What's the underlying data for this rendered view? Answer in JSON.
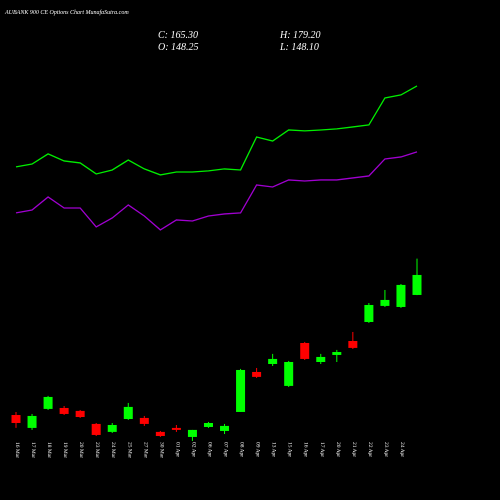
{
  "chart_data": {
    "type": "candlestick",
    "title": "AUBANK 900  CE Options Chart MunafaSutra.com",
    "header": {
      "close": "C: 165.30",
      "high": "H: 179.20",
      "open": "O: 148.25",
      "low": "L: 148.10"
    },
    "categories": [
      "16 Mar",
      "17 Mar",
      "18 Mar",
      "19 Mar",
      "20 Mar",
      "23 Mar",
      "24 Mar",
      "25 Mar",
      "27 Mar",
      "30 Mar",
      "01 Apr",
      "02 Apr",
      "06 Apr",
      "07 Apr",
      "08 Apr",
      "09 Apr",
      "13 Apr",
      "15 Apr",
      "16 Apr",
      "17 Apr",
      "20 Apr",
      "21 Apr",
      "22 Apr",
      "23 Apr",
      "24 Apr",
      null
    ],
    "open": [
      45.9,
      34.9,
      51.1,
      51.9,
      49.4,
      38.3,
      31.5,
      42.5,
      43.4,
      31.5,
      34.9,
      27.2,
      35.7,
      32.3,
      48.5,
      82.6,
      89.4,
      70.7,
      107.3,
      91.1,
      97.1,
      109.0,
      125.2,
      138.9,
      138.0,
      148.25
    ],
    "high": [
      48.5,
      46.8,
      62.2,
      53.6,
      50.2,
      39.1,
      39.1,
      56.2,
      45.1,
      32.3,
      37.4,
      33.2,
      40.0,
      38.3,
      85.2,
      86.0,
      98.0,
      92.0,
      108.2,
      98.0,
      101.4,
      116.7,
      141.4,
      152.5,
      157.6,
      179.2
    ],
    "low": [
      34.9,
      33.2,
      50.2,
      45.9,
      43.4,
      28.0,
      30.6,
      41.7,
      36.6,
      27.2,
      31.5,
      23.8,
      34.9,
      29.7,
      48.5,
      77.5,
      87.7,
      69.8,
      92.8,
      89.4,
      91.1,
      102.2,
      124.4,
      138.0,
      137.2,
      148.1
    ],
    "close": [
      39.1,
      45.1,
      61.3,
      46.8,
      44.2,
      28.9,
      37.4,
      52.8,
      38.3,
      28.0,
      33.2,
      33.2,
      39.1,
      36.6,
      84.3,
      78.4,
      93.7,
      91.1,
      93.7,
      95.4,
      99.6,
      103.1,
      139.7,
      144.0,
      156.8,
      165.3
    ],
    "up_color": "#00ff00",
    "down_color": "#ff0000",
    "series": [
      {
        "color": "#00ee00",
        "values": [
          257.4,
          259.9,
          268.5,
          262.5,
          260.8,
          251.4,
          254.8,
          263.3,
          255.7,
          250.6,
          253.1,
          253.1,
          254.0,
          255.7,
          254.8,
          282.9,
          279.5,
          288.9,
          288.1,
          288.9,
          289.8,
          291.5,
          293.2,
          316.2,
          318.8,
          326.4
        ]
      },
      {
        "color": "#a000d0",
        "values": [
          218.2,
          220.7,
          231.8,
          222.4,
          222.4,
          206.2,
          213.9,
          225.0,
          215.6,
          203.7,
          212.2,
          211.3,
          215.6,
          217.3,
          218.2,
          242.0,
          240.3,
          246.3,
          245.4,
          246.3,
          246.3,
          248.0,
          249.7,
          264.2,
          265.9,
          270.2
        ]
      }
    ],
    "ylim": [
      24.6,
      399.7
    ]
  }
}
